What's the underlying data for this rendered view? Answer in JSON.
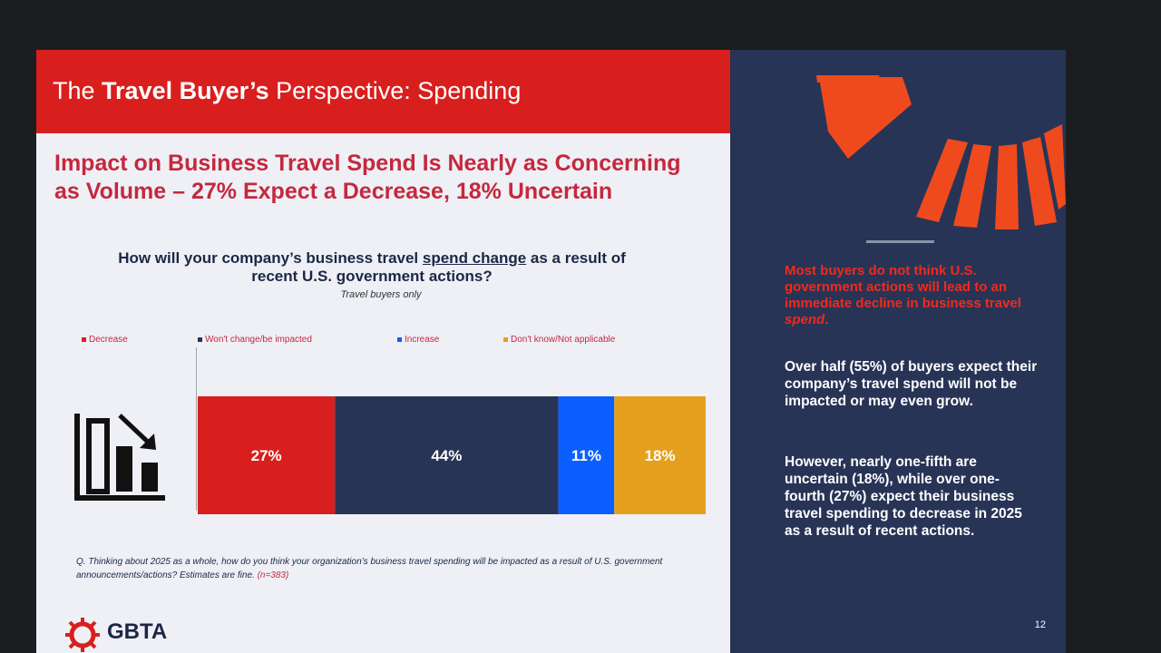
{
  "header": {
    "title_pre": "The ",
    "title_bold": "Travel Buyer’s",
    "title_post": " Perspective: Spending"
  },
  "headline": "Impact on Business Travel Spend Is Nearly as Concerning as Volume – 27% Expect a Decrease, 18% Uncertain",
  "question": {
    "pre": "How will your company’s business travel ",
    "underlined": "spend change",
    "post": " as a result of recent U.S. government actions?",
    "sub": "Travel buyers only"
  },
  "chart_data": {
    "type": "bar",
    "orientation": "horizontal-stacked",
    "categories": [
      ""
    ],
    "series": [
      {
        "name": "Decrease",
        "values": [
          27
        ],
        "color": "#d81f1e",
        "label": "27%"
      },
      {
        "name": "Won't change/be impacted",
        "values": [
          44
        ],
        "color": "#273456",
        "label": "44%"
      },
      {
        "name": "Increase",
        "values": [
          11
        ],
        "color": "#0b5fff",
        "label": "11%"
      },
      {
        "name": "Don't know/Not applicable",
        "values": [
          18
        ],
        "color": "#e5a01e",
        "label": "18%"
      }
    ],
    "legend_position": "top",
    "xlim": [
      0,
      100
    ],
    "icon": "declining-bar-chart-icon"
  },
  "footnote": {
    "text": "Q. Thinking about 2025 as a whole, how do you think your organization’s business travel spending will be impacted as a result of U.S. government announcements/actions? Estimates are fine. ",
    "n": "(n=383)"
  },
  "logo": {
    "text": "GBTA"
  },
  "right_panel": {
    "heading_pre": "Most buyers do not think U.S. government actions will lead to an immediate decline in business travel ",
    "heading_italic": "spend",
    "heading_post": ".",
    "para1": "Over half (55%) of buyers expect their company’s travel spend will not be impacted or may even grow.",
    "para2": "However, nearly one-fifth are uncertain (18%), while over one-fourth (27%) expect their business travel spending to decrease in 2025 as a result of recent actions.",
    "page_number": "12"
  },
  "colors": {
    "brand_red": "#d81f1e",
    "navy": "#273456",
    "headline_red": "#c5283d"
  }
}
